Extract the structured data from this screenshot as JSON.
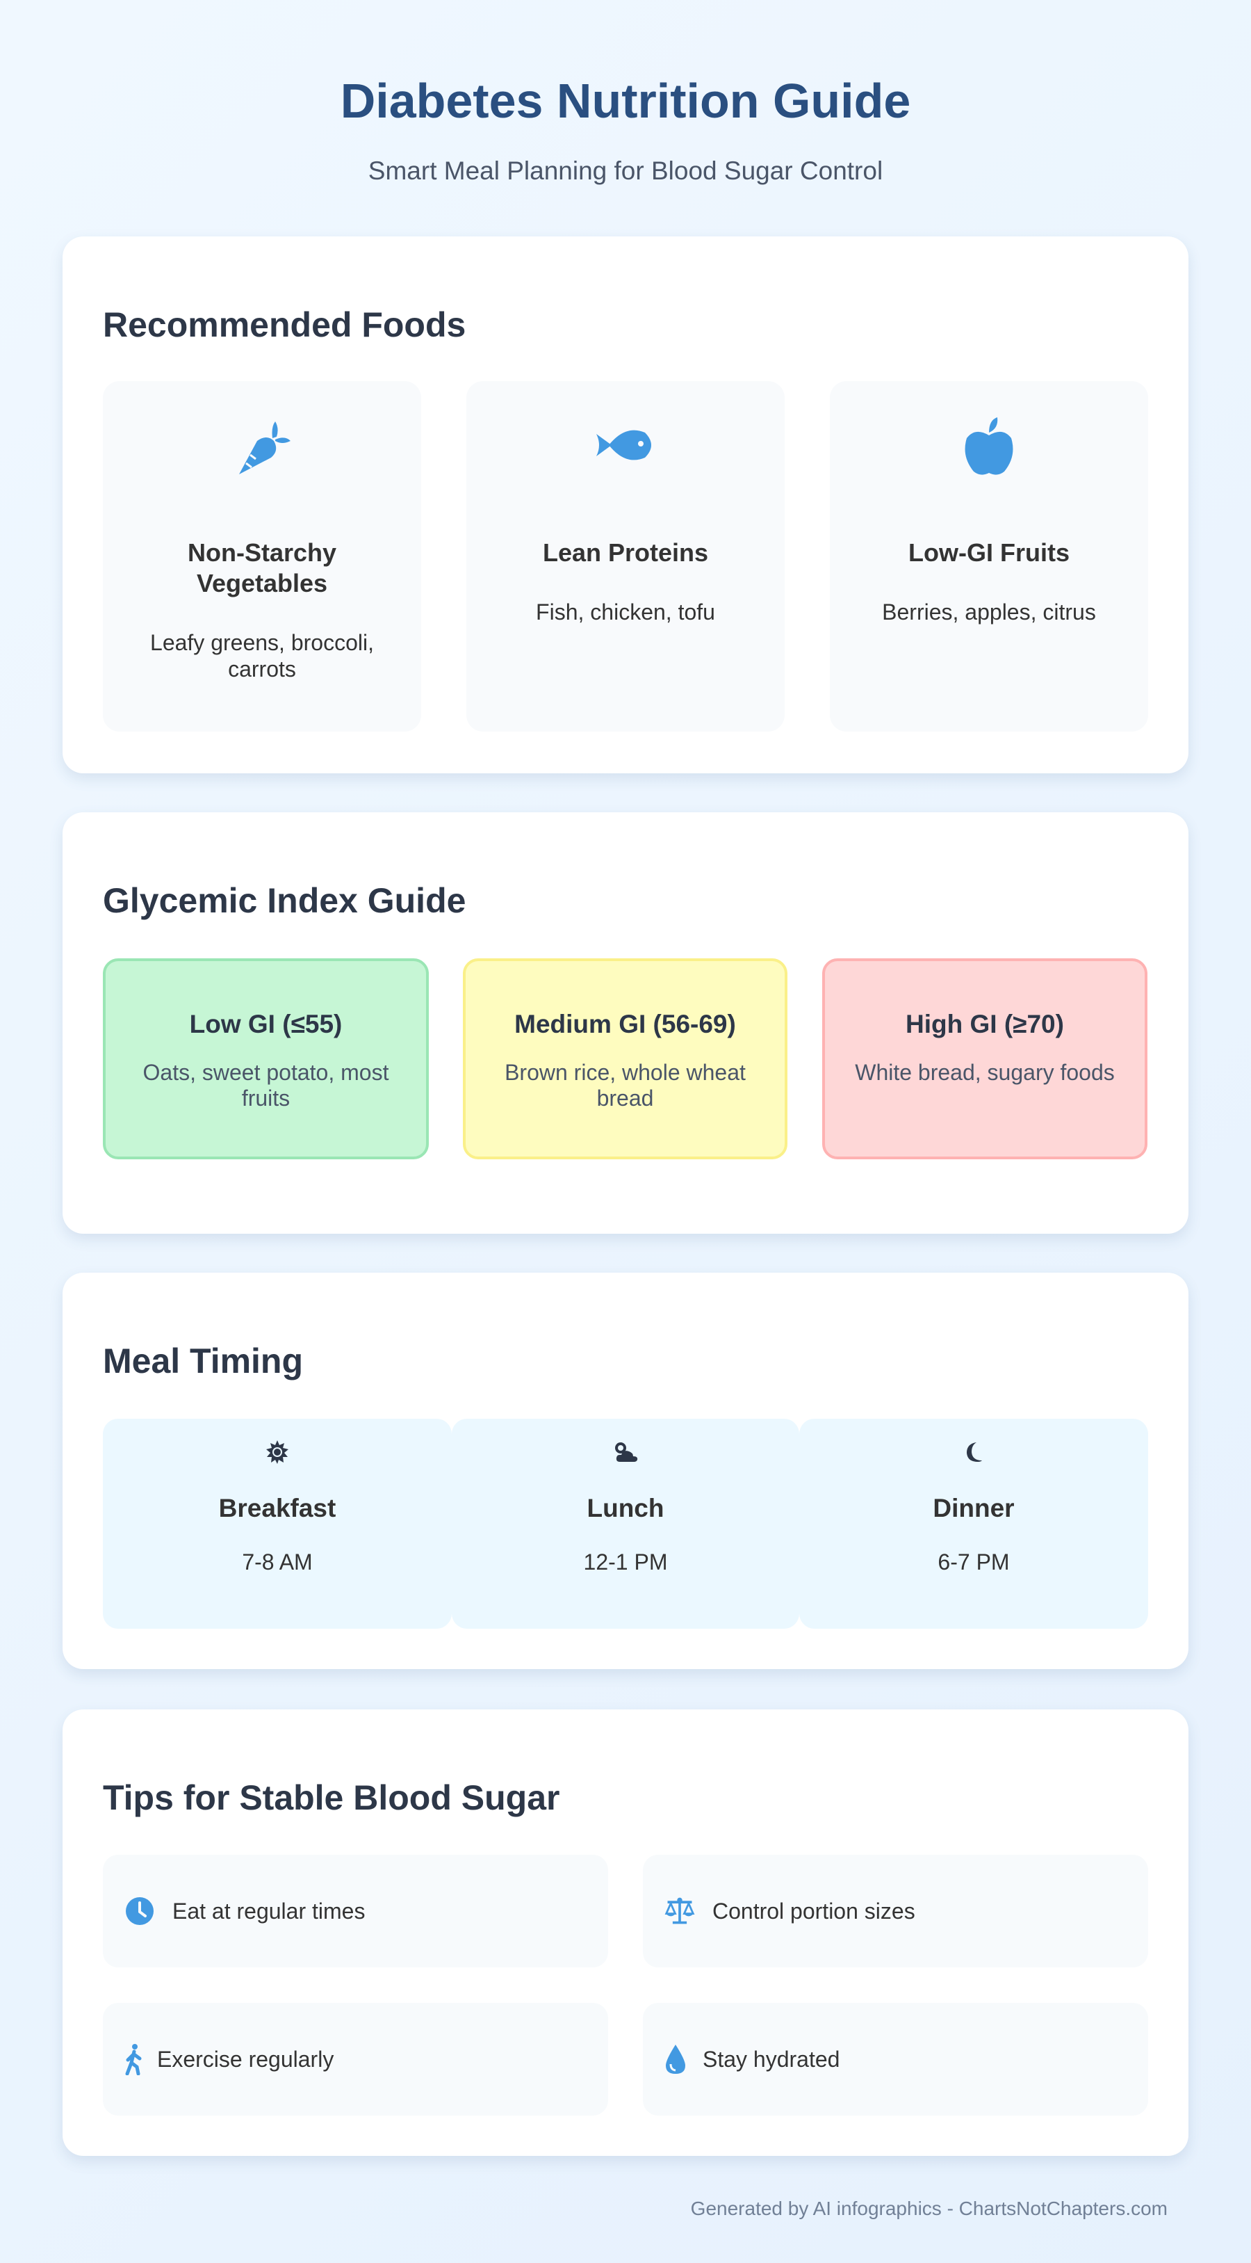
{
  "header": {
    "title": "Diabetes Nutrition Guide",
    "subtitle": "Smart Meal Planning for Blood Sugar Control"
  },
  "recommended": {
    "heading": "Recommended Foods",
    "items": [
      {
        "icon": "carrot-icon",
        "title": "Non-Starchy Vegetables",
        "desc": "Leafy greens, broccoli, carrots"
      },
      {
        "icon": "fish-icon",
        "title": "Lean Proteins",
        "desc": "Fish, chicken, tofu"
      },
      {
        "icon": "apple-icon",
        "title": "Low-GI Fruits",
        "desc": "Berries, apples, citrus"
      }
    ]
  },
  "glycemic": {
    "heading": "Glycemic Index Guide",
    "items": [
      {
        "title": "Low GI (≤55)",
        "desc": "Oats, sweet potato, most fruits",
        "bg": "#c6f6d5",
        "border": "#9ae6b4"
      },
      {
        "title": "Medium GI (56-69)",
        "desc": "Brown rice, whole wheat bread",
        "bg": "#fefcbf",
        "border": "#faf089"
      },
      {
        "title": "High GI (≥70)",
        "desc": "White bread, sugary foods",
        "bg": "#fed7d7",
        "border": "#feb2b2"
      }
    ]
  },
  "meals": {
    "heading": "Meal Timing",
    "items": [
      {
        "icon": "sun-icon",
        "title": "Breakfast",
        "time": "7-8 AM"
      },
      {
        "icon": "cloud-sun-icon",
        "title": "Lunch",
        "time": "12-1 PM"
      },
      {
        "icon": "moon-icon",
        "title": "Dinner",
        "time": "6-7 PM"
      }
    ]
  },
  "tips": {
    "heading": "Tips for Stable Blood Sugar",
    "items": [
      {
        "icon": "clock-icon",
        "text": "Eat at regular times"
      },
      {
        "icon": "scale-icon",
        "text": "Control portion sizes"
      },
      {
        "icon": "walking-icon",
        "text": "Exercise regularly"
      },
      {
        "icon": "water-drop-icon",
        "text": "Stay hydrated"
      }
    ]
  },
  "footer": "Generated by AI infographics - ChartsNotChapters.com",
  "colors": {
    "accent": "#4299e1",
    "title": "#2a4f80"
  }
}
